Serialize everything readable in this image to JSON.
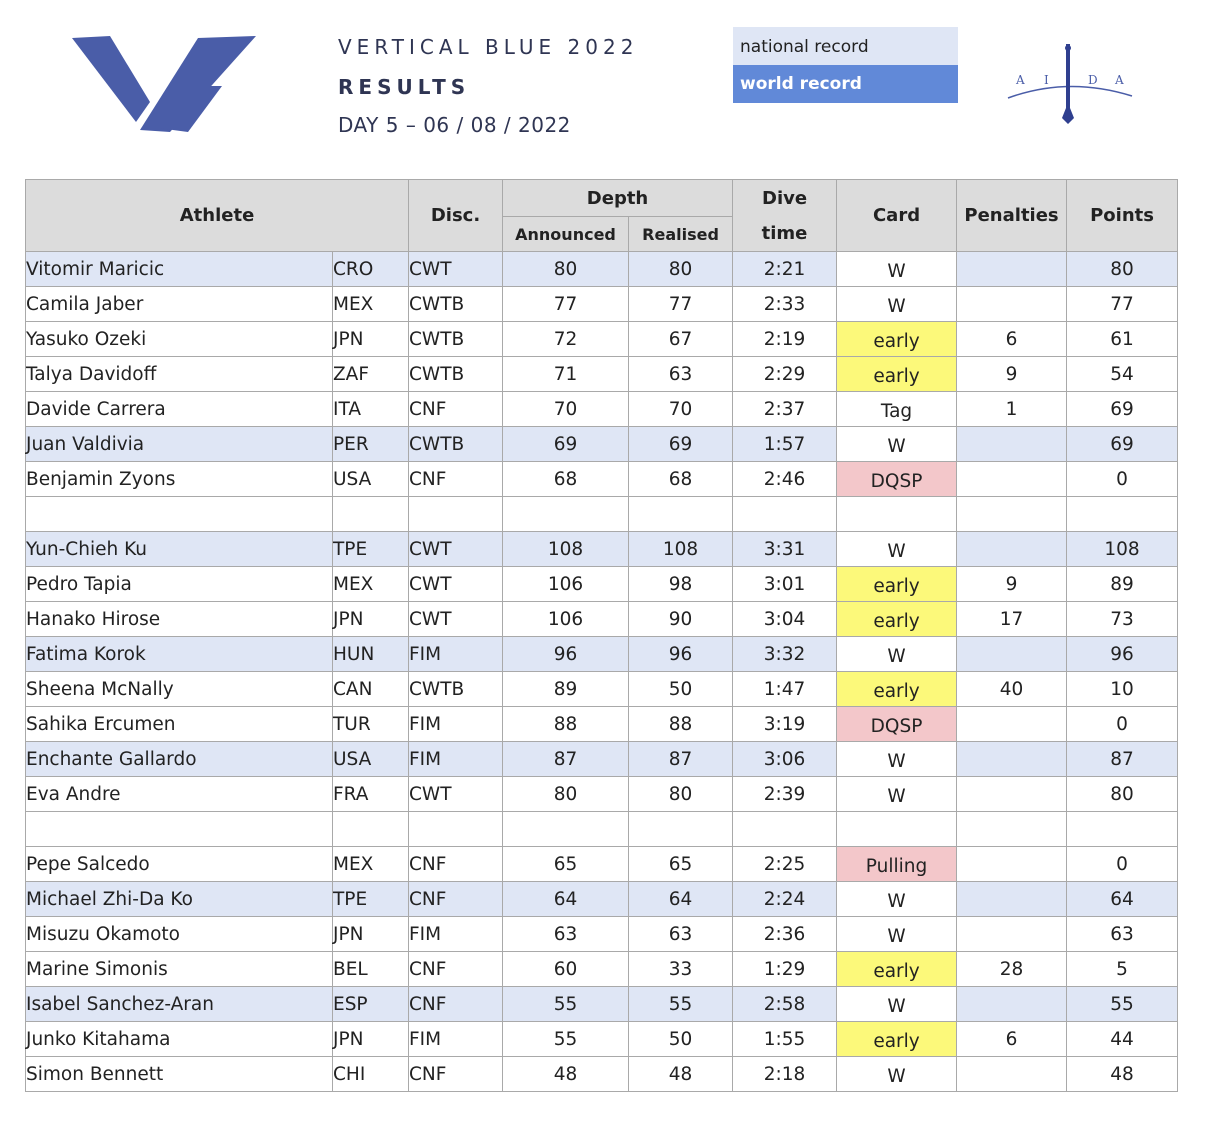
{
  "header": {
    "event": "VERTICAL BLUE 2022",
    "subtitle": "RESULTS",
    "day": "DAY 5  –  06 / 08 / 2022",
    "legend_national": "national record",
    "legend_world": "world record",
    "aida_letters": [
      "A",
      "I",
      "D",
      "A"
    ],
    "colors": {
      "brand_blue": "#4a5da8",
      "national_record_bg": "#dfe6f5",
      "world_record_bg": "#6189d8",
      "early_bg": "#fcf97a",
      "dq_bg": "#f3c7ca"
    }
  },
  "table": {
    "headers": {
      "athlete": "Athlete",
      "disc": "Disc.",
      "depth": "Depth",
      "announced": "Announced",
      "realised": "Realised",
      "dive": "Dive",
      "time": "time",
      "card": "Card",
      "penalties": "Penalties",
      "points": "Points"
    },
    "rows": [
      {
        "name": "Vitomir Maricic",
        "nat": "CRO",
        "disc": "CWT",
        "announced": "80",
        "realised": "80",
        "time": "2:21",
        "card": "W",
        "penalties": "",
        "points": "80"
      },
      {
        "name": "Camila Jaber",
        "nat": "MEX",
        "disc": "CWTB",
        "announced": "77",
        "realised": "77",
        "time": "2:33",
        "card": "W",
        "penalties": "",
        "points": "77"
      },
      {
        "name": "Yasuko Ozeki",
        "nat": "JPN",
        "disc": "CWTB",
        "announced": "72",
        "realised": "67",
        "time": "2:19",
        "card": "early",
        "penalties": "6",
        "points": "61"
      },
      {
        "name": "Talya Davidoff",
        "nat": "ZAF",
        "disc": "CWTB",
        "announced": "71",
        "realised": "63",
        "time": "2:29",
        "card": "early",
        "penalties": "9",
        "points": "54"
      },
      {
        "name": "Davide Carrera",
        "nat": "ITA",
        "disc": "CNF",
        "announced": "70",
        "realised": "70",
        "time": "2:37",
        "card": "Tag",
        "penalties": "1",
        "points": "69"
      },
      {
        "name": "Juan Valdivia",
        "nat": "PER",
        "disc": "CWTB",
        "announced": "69",
        "realised": "69",
        "time": "1:57",
        "card": "W",
        "penalties": "",
        "points": "69"
      },
      {
        "name": "Benjamin Zyons",
        "nat": "USA",
        "disc": "CNF",
        "announced": "68",
        "realised": "68",
        "time": "2:46",
        "card": "DQSP",
        "penalties": "",
        "points": "0"
      },
      {
        "name": "Yun-Chieh Ku",
        "nat": "TPE",
        "disc": "CWT",
        "announced": "108",
        "realised": "108",
        "time": "3:31",
        "card": "W",
        "penalties": "",
        "points": "108"
      },
      {
        "name": "Pedro Tapia",
        "nat": "MEX",
        "disc": "CWT",
        "announced": "106",
        "realised": "98",
        "time": "3:01",
        "card": "early",
        "penalties": "9",
        "points": "89"
      },
      {
        "name": "Hanako Hirose",
        "nat": "JPN",
        "disc": "CWT",
        "announced": "106",
        "realised": "90",
        "time": "3:04",
        "card": "early",
        "penalties": "17",
        "points": "73"
      },
      {
        "name": "Fatima Korok",
        "nat": "HUN",
        "disc": "FIM",
        "announced": "96",
        "realised": "96",
        "time": "3:32",
        "card": "W",
        "penalties": "",
        "points": "96"
      },
      {
        "name": "Sheena McNally",
        "nat": "CAN",
        "disc": "CWTB",
        "announced": "89",
        "realised": "50",
        "time": "1:47",
        "card": "early",
        "penalties": "40",
        "points": "10"
      },
      {
        "name": "Sahika Ercumen",
        "nat": "TUR",
        "disc": "FIM",
        "announced": "88",
        "realised": "88",
        "time": "3:19",
        "card": "DQSP",
        "penalties": "",
        "points": "0"
      },
      {
        "name": "Enchante Gallardo",
        "nat": "USA",
        "disc": "FIM",
        "announced": "87",
        "realised": "87",
        "time": "3:06",
        "card": "W",
        "penalties": "",
        "points": "87"
      },
      {
        "name": "Eva Andre",
        "nat": "FRA",
        "disc": "CWT",
        "announced": "80",
        "realised": "80",
        "time": "2:39",
        "card": "W",
        "penalties": "",
        "points": "80"
      },
      {
        "name": "Pepe Salcedo",
        "nat": "MEX",
        "disc": "CNF",
        "announced": "65",
        "realised": "65",
        "time": "2:25",
        "card": "Pulling",
        "penalties": "",
        "points": "0"
      },
      {
        "name": "Michael Zhi-Da Ko",
        "nat": "TPE",
        "disc": "CNF",
        "announced": "64",
        "realised": "64",
        "time": "2:24",
        "card": "W",
        "penalties": "",
        "points": "64"
      },
      {
        "name": "Misuzu Okamoto",
        "nat": "JPN",
        "disc": "FIM",
        "announced": "63",
        "realised": "63",
        "time": "2:36",
        "card": "W",
        "penalties": "",
        "points": "63"
      },
      {
        "name": "Marine Simonis",
        "nat": "BEL",
        "disc": "CNF",
        "announced": "60",
        "realised": "33",
        "time": "1:29",
        "card": "early",
        "penalties": "28",
        "points": "5"
      },
      {
        "name": "Isabel Sanchez-Aran",
        "nat": "ESP",
        "disc": "CNF",
        "announced": "55",
        "realised": "55",
        "time": "2:58",
        "card": "W",
        "penalties": "",
        "points": "55"
      },
      {
        "name": "Junko Kitahama",
        "nat": "JPN",
        "disc": "FIM",
        "announced": "55",
        "realised": "50",
        "time": "1:55",
        "card": "early",
        "penalties": "6",
        "points": "44"
      },
      {
        "name": "Simon Bennett",
        "nat": "CHI",
        "disc": "CNF",
        "announced": "48",
        "realised": "48",
        "time": "2:18",
        "card": "W",
        "penalties": "",
        "points": "48"
      }
    ]
  }
}
